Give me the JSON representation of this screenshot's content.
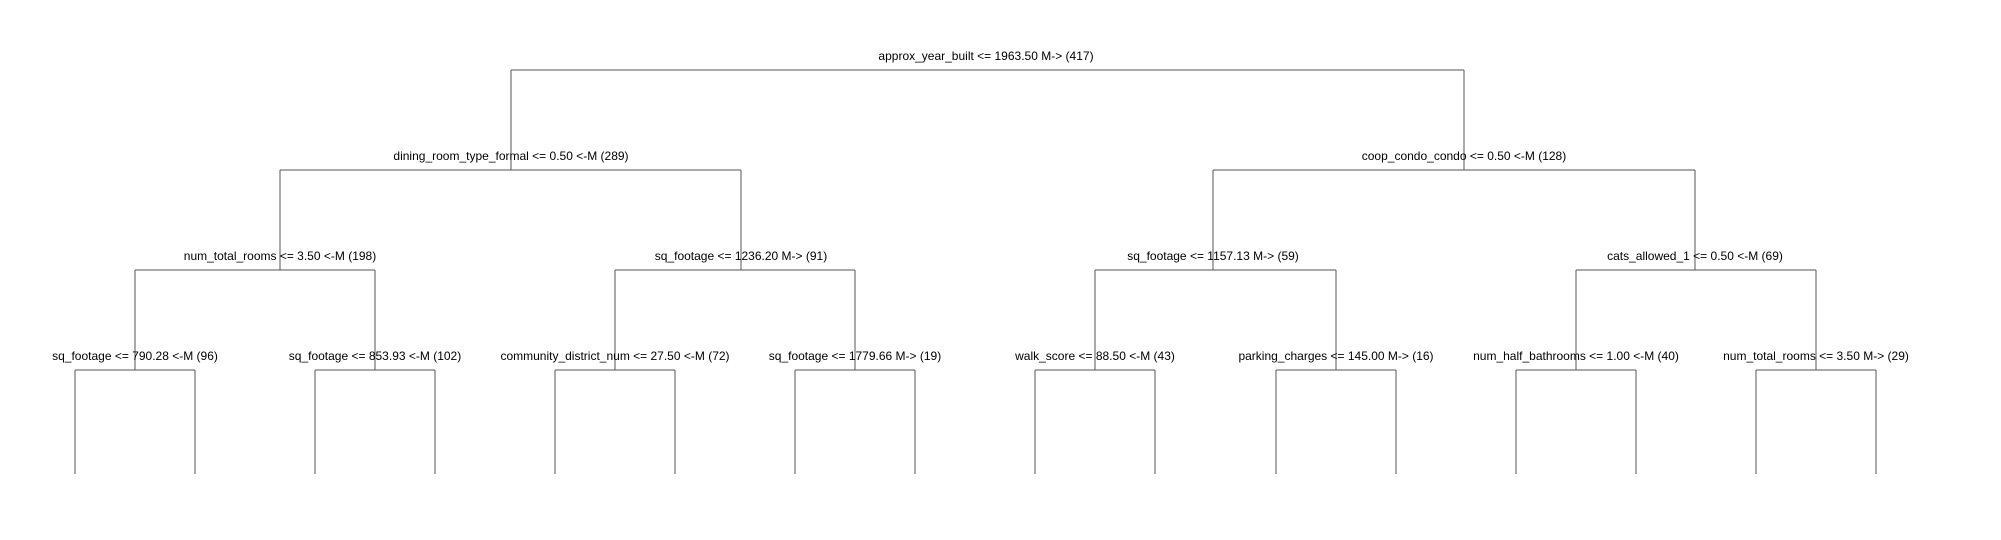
{
  "colors": {
    "line": "#555555",
    "text": "#000000",
    "background": "#ffffff"
  },
  "tree": {
    "nodes": [
      {
        "id": "root",
        "label": "approx_year_built <= 1963.50 M-> (417)"
      },
      {
        "id": "l",
        "label": "dining_room_type_formal <= 0.50 <-M (289)"
      },
      {
        "id": "r",
        "label": "coop_condo_condo <= 0.50 <-M (128)"
      },
      {
        "id": "ll",
        "label": "num_total_rooms <= 3.50 <-M (198)"
      },
      {
        "id": "lr",
        "label": "sq_footage <= 1236.20 M-> (91)"
      },
      {
        "id": "rl",
        "label": "sq_footage <= 1157.13 M-> (59)"
      },
      {
        "id": "rr",
        "label": "cats_allowed_1 <= 0.50 <-M (69)"
      },
      {
        "id": "lll",
        "label": "sq_footage <= 790.28 <-M (96)"
      },
      {
        "id": "llr",
        "label": "sq_footage <= 853.93 <-M (102)"
      },
      {
        "id": "lrl",
        "label": "community_district_num <= 27.50 <-M (72)"
      },
      {
        "id": "lrr",
        "label": "sq_footage <= 1779.66 M-> (19)"
      },
      {
        "id": "rll",
        "label": "walk_score <= 88.50 <-M (43)"
      },
      {
        "id": "rlr",
        "label": "parking_charges <= 145.00 M-> (16)"
      },
      {
        "id": "rrl",
        "label": "num_half_bathrooms <= 1.00 <-M (40)"
      },
      {
        "id": "rrr",
        "label": "num_total_rooms <= 3.50 M-> (29)"
      }
    ]
  }
}
